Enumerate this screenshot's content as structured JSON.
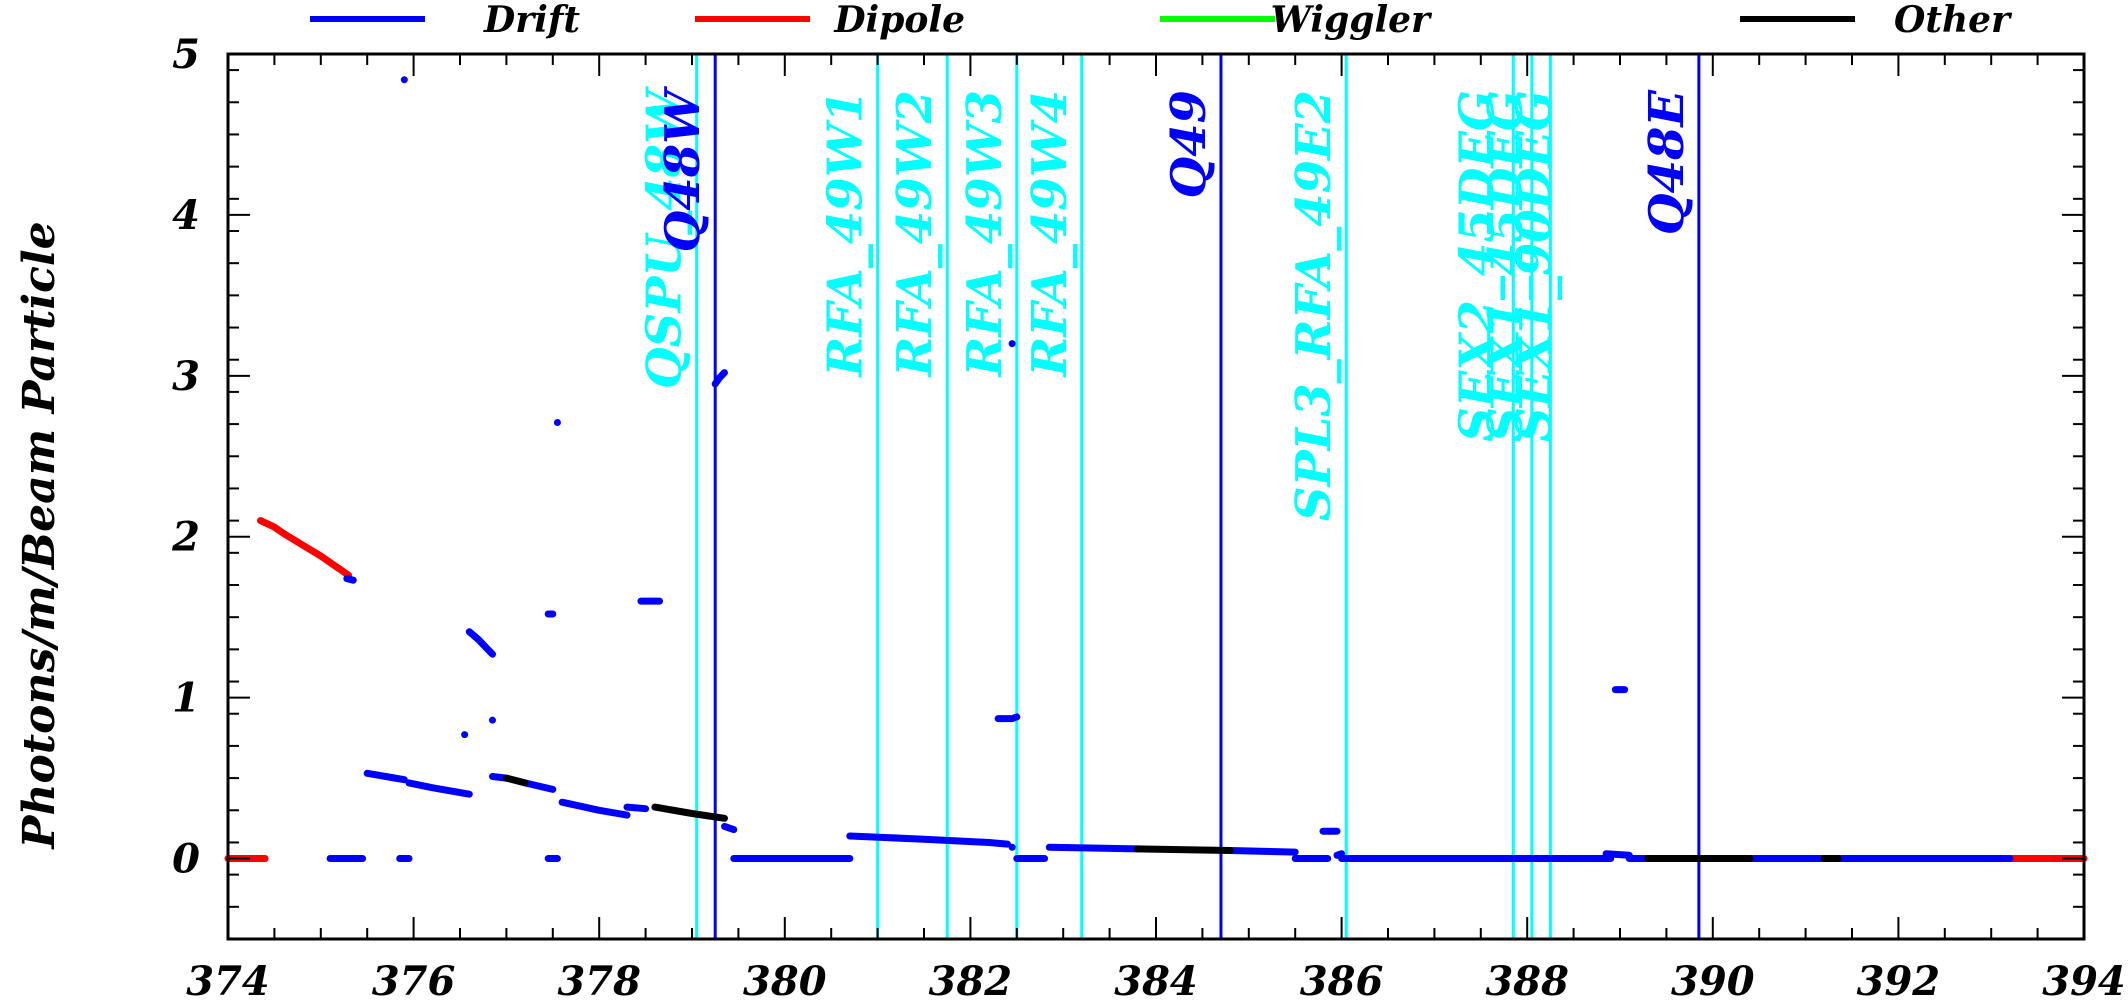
{
  "chart_data": {
    "type": "scatter",
    "ylabel": "Photons/m/Beam Particle",
    "xlim": [
      374,
      394
    ],
    "ylim": [
      -0.5,
      5
    ],
    "x_ticks": [
      "374",
      "376",
      "378",
      "380",
      "382",
      "384",
      "386",
      "388",
      "390",
      "392",
      "394"
    ],
    "y_ticks": [
      "0",
      "1",
      "2",
      "3",
      "4",
      "5"
    ],
    "legend": {
      "placement": "top",
      "entries": [
        {
          "name": "Drift",
          "color": "#0000ff"
        },
        {
          "name": "Dipole",
          "color": "#ff0000"
        },
        {
          "name": "Wiggler",
          "color": "#00ff00"
        },
        {
          "name": "Other",
          "color": "#000000"
        }
      ]
    },
    "markers": [
      {
        "x": 379.05,
        "label": "QSPU_48W",
        "color": "#00ffff"
      },
      {
        "x": 379.25,
        "label": "Q48W",
        "color": "#0000ff"
      },
      {
        "x": 381.0,
        "label": "RFA_49W1",
        "color": "#00ffff"
      },
      {
        "x": 381.75,
        "label": "RFA_49W2",
        "color": "#00ffff"
      },
      {
        "x": 382.5,
        "label": "RFA_49W3",
        "color": "#00ffff"
      },
      {
        "x": 383.2,
        "label": "RFA_49W4",
        "color": "#00ffff"
      },
      {
        "x": 384.7,
        "label": "Q49",
        "color": "#0000ff"
      },
      {
        "x": 386.05,
        "label": "SPL3_RFA_49E2",
        "color": "#00ffff"
      },
      {
        "x": 387.85,
        "label": "SEX2_45DEG",
        "color": "#00ffff"
      },
      {
        "x": 388.05,
        "label": "SEX1_45DEG",
        "color": "#00ffff"
      },
      {
        "x": 388.25,
        "label": "SEX1_90DEG",
        "color": "#00ffff"
      },
      {
        "x": 389.85,
        "label": "Q48E",
        "color": "#0000ff"
      }
    ],
    "series": [
      {
        "name": "Dipole",
        "color": "#ff0000",
        "segments": [
          [
            [
              374.0,
              0
            ],
            [
              374.4,
              0
            ]
          ],
          [
            [
              374.35,
              2.1
            ],
            [
              374.5,
              2.06
            ],
            [
              374.6,
              2.02
            ],
            [
              374.8,
              1.95
            ],
            [
              375.0,
              1.88
            ],
            [
              375.2,
              1.8
            ],
            [
              375.3,
              1.76
            ]
          ],
          [
            [
              393.2,
              0
            ],
            [
              394.0,
              0
            ]
          ]
        ]
      },
      {
        "name": "Drift",
        "color": "#0000ff",
        "segments": [
          [
            [
              375.28,
              1.74
            ],
            [
              375.35,
              1.73
            ]
          ],
          [
            [
              375.1,
              0
            ],
            [
              375.45,
              0
            ]
          ],
          [
            [
              375.85,
              0
            ],
            [
              375.95,
              0
            ]
          ],
          [
            [
              375.9,
              4.84
            ]
          ],
          [
            [
              375.5,
              0.53
            ],
            [
              375.7,
              0.51
            ],
            [
              375.9,
              0.49
            ]
          ],
          [
            [
              375.95,
              0.47
            ],
            [
              376.2,
              0.44
            ],
            [
              376.5,
              0.41
            ],
            [
              376.6,
              0.4
            ]
          ],
          [
            [
              376.55,
              0.77
            ]
          ],
          [
            [
              376.6,
              1.41
            ],
            [
              376.7,
              1.36
            ],
            [
              376.8,
              1.3
            ],
            [
              376.85,
              1.27
            ]
          ],
          [
            [
              376.85,
              0.86
            ]
          ],
          [
            [
              376.85,
              0.51
            ],
            [
              377.0,
              0.5
            ]
          ],
          [
            [
              377.2,
              0.47
            ],
            [
              377.5,
              0.43
            ]
          ],
          [
            [
              377.45,
              1.52
            ],
            [
              377.5,
              1.52
            ]
          ],
          [
            [
              377.55,
              2.71
            ]
          ],
          [
            [
              377.45,
              0
            ],
            [
              377.55,
              0
            ]
          ],
          [
            [
              377.6,
              0.35
            ],
            [
              378.0,
              0.3
            ],
            [
              378.3,
              0.27
            ]
          ],
          [
            [
              378.3,
              0.32
            ],
            [
              378.5,
              0.31
            ]
          ],
          [
            [
              378.45,
              1.6
            ],
            [
              378.65,
              1.6
            ]
          ],
          [
            [
              379.25,
              2.95
            ],
            [
              379.3,
              2.99
            ],
            [
              379.35,
              3.02
            ]
          ],
          [
            [
              379.35,
              0.2
            ],
            [
              379.45,
              0.18
            ]
          ],
          [
            [
              379.45,
              0
            ],
            [
              380.7,
              0
            ]
          ],
          [
            [
              380.7,
              0.14
            ],
            [
              381.5,
              0.12
            ],
            [
              382.2,
              0.1
            ],
            [
              382.4,
              0.09
            ]
          ],
          [
            [
              382.3,
              0.87
            ],
            [
              382.45,
              0.87
            ],
            [
              382.5,
              0.88
            ]
          ],
          [
            [
              382.45,
              3.2
            ]
          ],
          [
            [
              382.45,
              0.07
            ]
          ],
          [
            [
              382.5,
              0
            ],
            [
              382.8,
              0
            ]
          ],
          [
            [
              382.85,
              0.07
            ],
            [
              383.8,
              0.06
            ]
          ],
          [
            [
              384.8,
              0.05
            ],
            [
              385.5,
              0.04
            ]
          ],
          [
            [
              385.5,
              0
            ],
            [
              385.85,
              0
            ]
          ],
          [
            [
              385.8,
              0.17
            ],
            [
              385.95,
              0.17
            ]
          ],
          [
            [
              385.95,
              0.02
            ],
            [
              386.0,
              0.03
            ]
          ],
          [
            [
              386.0,
              0
            ],
            [
              388.9,
              0
            ]
          ],
          [
            [
              388.85,
              0.03
            ],
            [
              389.1,
              0.02
            ]
          ],
          [
            [
              388.95,
              1.05
            ],
            [
              389.05,
              1.05
            ]
          ],
          [
            [
              389.1,
              0
            ],
            [
              389.3,
              0
            ]
          ],
          [
            [
              390.4,
              0
            ],
            [
              391.2,
              0
            ]
          ],
          [
            [
              391.35,
              0
            ],
            [
              393.2,
              0
            ]
          ]
        ]
      },
      {
        "name": "Wiggler",
        "color": "#00ff00",
        "segments": []
      },
      {
        "name": "Other",
        "color": "#000000",
        "segments": [
          [
            [
              377.0,
              0.5
            ],
            [
              377.2,
              0.47
            ]
          ],
          [
            [
              378.6,
              0.32
            ],
            [
              379.0,
              0.28
            ],
            [
              379.35,
              0.25
            ]
          ],
          [
            [
              383.8,
              0.06
            ],
            [
              384.8,
              0.05
            ]
          ],
          [
            [
              389.3,
              0
            ],
            [
              390.4,
              0
            ]
          ],
          [
            [
              391.2,
              0
            ],
            [
              391.35,
              0
            ]
          ]
        ]
      }
    ]
  }
}
